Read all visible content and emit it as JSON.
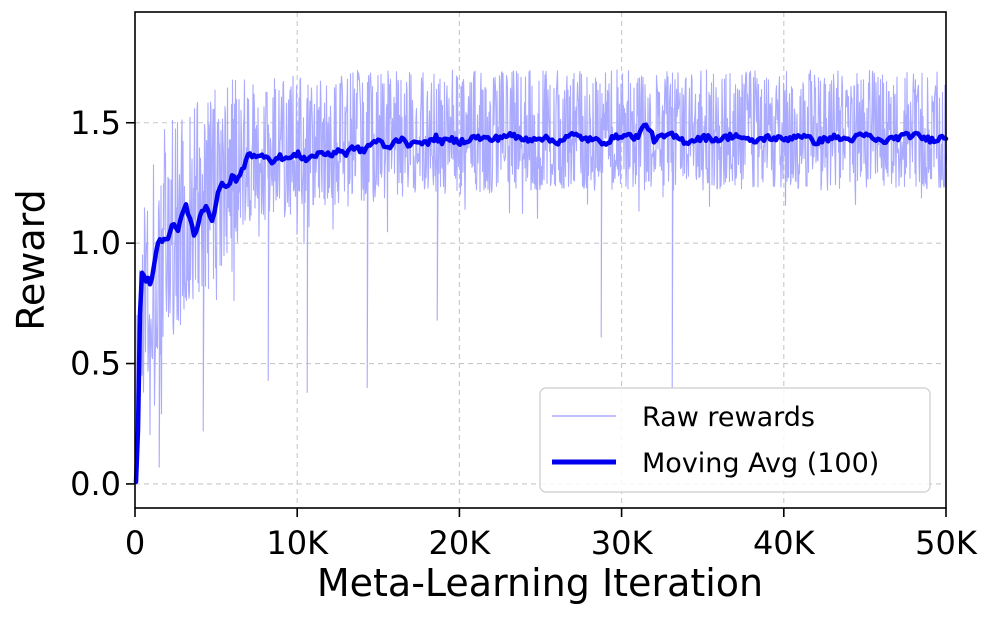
{
  "chart_data": {
    "type": "line",
    "title": "",
    "xlabel": "Meta-Learning Iteration",
    "ylabel": "Reward",
    "xlim": [
      0,
      50000
    ],
    "ylim": [
      -0.1,
      1.96
    ],
    "x_ticks": [
      0,
      10000,
      20000,
      30000,
      40000,
      50000
    ],
    "x_tick_labels": [
      "0",
      "10K",
      "20K",
      "30K",
      "40K",
      "50K"
    ],
    "y_ticks": [
      0.0,
      0.5,
      1.0,
      1.5
    ],
    "y_tick_labels": [
      "0.0",
      "0.5",
      "1.0",
      "1.5"
    ],
    "grid": true,
    "legend_position": "lower-right",
    "series": [
      {
        "name": "Raw rewards",
        "color": "#aaaaff",
        "style": "thin-noisy",
        "x": [
          0,
          300,
          600,
          1000,
          1500,
          2000,
          2500,
          3000,
          3500,
          4000,
          4500,
          5000,
          5500,
          6000,
          6500,
          7000,
          8000,
          9000,
          10000,
          11000,
          12000,
          13000,
          14000,
          15000,
          16000,
          17000,
          18000,
          19000,
          20000,
          22000,
          24000,
          26000,
          28000,
          30000,
          32000,
          34000,
          36000,
          38000,
          40000,
          42000,
          44000,
          46000,
          48000,
          50000
        ],
        "values": [
          0.0,
          0.62,
          0.8,
          0.85,
          0.95,
          1.0,
          1.05,
          1.1,
          1.05,
          1.12,
          1.18,
          1.22,
          1.27,
          1.3,
          1.33,
          1.36,
          1.36,
          1.37,
          1.37,
          1.38,
          1.39,
          1.4,
          1.41,
          1.42,
          1.42,
          1.42,
          1.42,
          1.43,
          1.43,
          1.44,
          1.44,
          1.44,
          1.44,
          1.44,
          1.44,
          1.44,
          1.44,
          1.44,
          1.44,
          1.43,
          1.43,
          1.44,
          1.43,
          1.43
        ],
        "band_low": [
          0.0,
          0.2,
          0.3,
          0.4,
          0.45,
          0.55,
          0.6,
          0.65,
          0.7,
          0.75,
          0.8,
          0.85,
          0.9,
          0.95,
          1.0,
          1.05,
          1.1,
          1.1,
          1.12,
          1.15,
          1.15,
          1.15,
          1.15,
          1.18,
          1.18,
          1.2,
          1.2,
          1.2,
          1.22,
          1.22,
          1.22,
          1.22,
          1.22,
          1.22,
          1.22,
          1.22,
          1.22,
          1.22,
          1.22,
          1.22,
          1.22,
          1.22,
          1.22,
          1.22
        ],
        "band_high": [
          0.5,
          1.1,
          1.3,
          1.4,
          1.45,
          1.5,
          1.55,
          1.6,
          1.62,
          1.62,
          1.65,
          1.65,
          1.68,
          1.68,
          1.7,
          1.7,
          1.7,
          1.7,
          1.7,
          1.7,
          1.72,
          1.72,
          1.72,
          1.72,
          1.72,
          1.72,
          1.72,
          1.72,
          1.72,
          1.72,
          1.72,
          1.72,
          1.72,
          1.72,
          1.72,
          1.72,
          1.72,
          1.72,
          1.72,
          1.72,
          1.72,
          1.72,
          1.72,
          1.72
        ],
        "notable_dips": [
          {
            "x": 1500,
            "y": 0.07
          },
          {
            "x": 4200,
            "y": 0.22
          },
          {
            "x": 8200,
            "y": 0.43
          },
          {
            "x": 10600,
            "y": 0.38
          },
          {
            "x": 14300,
            "y": 0.4
          },
          {
            "x": 18600,
            "y": 0.68
          },
          {
            "x": 28700,
            "y": 0.61
          },
          {
            "x": 33100,
            "y": 0.4
          }
        ]
      },
      {
        "name": "Moving Avg (100)",
        "color": "#0000ee",
        "x": [
          0,
          150,
          250,
          400,
          700,
          1000,
          1300,
          1600,
          2000,
          2300,
          2600,
          2900,
          3100,
          3400,
          3700,
          4000,
          4400,
          4800,
          5100,
          5400,
          5700,
          6000,
          6300,
          6600,
          7000,
          7500,
          8000,
          8500,
          9000,
          9500,
          10000,
          10500,
          11000,
          11500,
          12000,
          12500,
          13000,
          13500,
          14000,
          14500,
          15000,
          15500,
          16000,
          16500,
          17000,
          17500,
          18000,
          18500,
          19000,
          19500,
          20000,
          21000,
          22000,
          23000,
          24000,
          25000,
          26000,
          27000,
          28000,
          29000,
          30000,
          31000,
          31500,
          32000,
          33000,
          34000,
          35000,
          36000,
          37000,
          38000,
          39000,
          40000,
          41000,
          42000,
          43000,
          44000,
          45000,
          46000,
          47000,
          48000,
          49000,
          50000
        ],
        "values": [
          0.0,
          0.02,
          0.6,
          0.88,
          0.85,
          0.83,
          0.97,
          1.02,
          1.0,
          1.08,
          1.05,
          1.12,
          1.17,
          1.1,
          1.02,
          1.12,
          1.16,
          1.08,
          1.2,
          1.26,
          1.22,
          1.28,
          1.26,
          1.3,
          1.38,
          1.35,
          1.37,
          1.34,
          1.36,
          1.35,
          1.37,
          1.35,
          1.36,
          1.38,
          1.36,
          1.39,
          1.37,
          1.4,
          1.38,
          1.41,
          1.43,
          1.39,
          1.42,
          1.44,
          1.4,
          1.43,
          1.41,
          1.44,
          1.42,
          1.43,
          1.42,
          1.44,
          1.43,
          1.45,
          1.43,
          1.44,
          1.42,
          1.45,
          1.43,
          1.42,
          1.45,
          1.44,
          1.5,
          1.43,
          1.45,
          1.42,
          1.44,
          1.43,
          1.45,
          1.42,
          1.44,
          1.43,
          1.45,
          1.42,
          1.44,
          1.43,
          1.45,
          1.42,
          1.44,
          1.45,
          1.43,
          1.44
        ]
      }
    ]
  }
}
